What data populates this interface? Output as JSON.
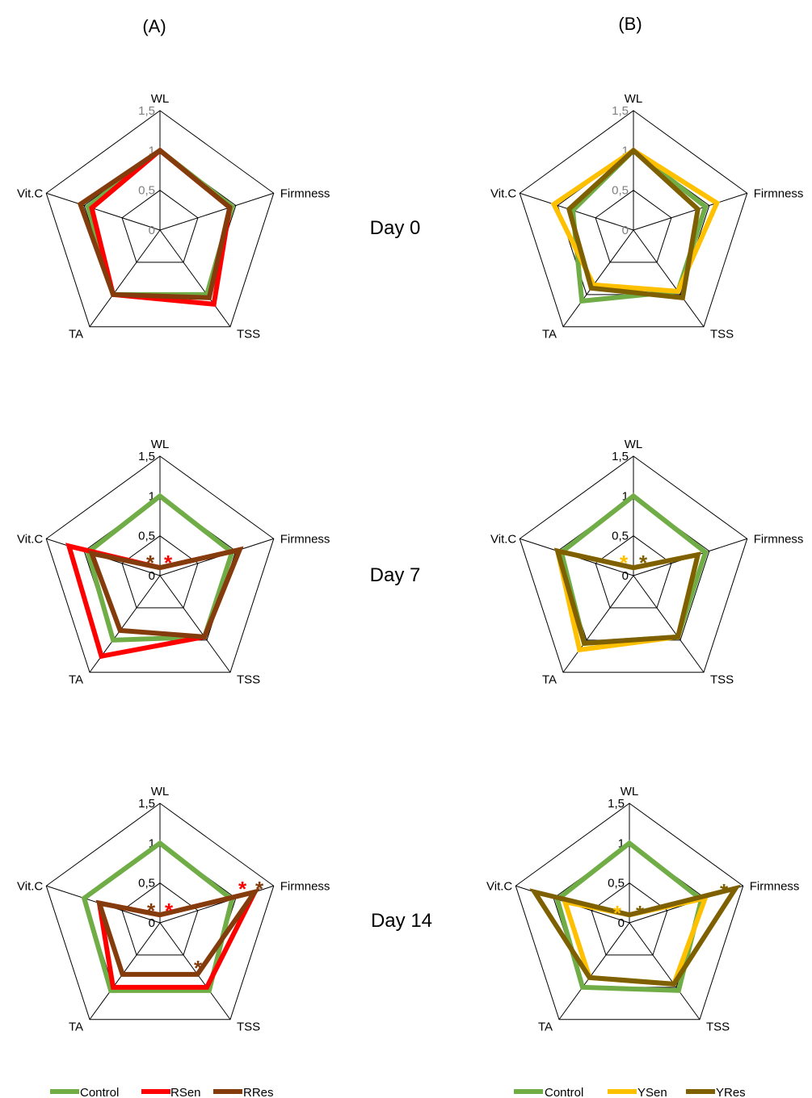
{
  "panel_labels": [
    "(A)",
    "(B)"
  ],
  "day_labels": [
    "Day 0",
    "Day 7",
    "Day 14"
  ],
  "legends": [
    [
      "Control",
      "RSen",
      "RRes"
    ],
    [
      "Control",
      "YSen",
      "YRes"
    ]
  ],
  "colors": {
    "Control": "#70ad47",
    "RSen": "#ff0000",
    "RRes": "#843c0c",
    "YSen": "#ffc000",
    "YRes": "#7f6000"
  },
  "chart_data": [
    {
      "type": "radar",
      "panel": "(A)",
      "day": "Day 0",
      "axes": [
        "WL",
        "Firmness",
        "TSS",
        "TA",
        "Vit.C"
      ],
      "ticks": [
        "0",
        "0,5",
        "1",
        "1,5"
      ],
      "rmax": 1.5,
      "series": [
        {
          "name": "Control",
          "values": [
            1.0,
            0.95,
            1.0,
            1.0,
            0.95
          ]
        },
        {
          "name": "RSen",
          "values": [
            1.0,
            0.92,
            1.15,
            1.0,
            0.9
          ]
        },
        {
          "name": "RRes",
          "values": [
            1.0,
            0.92,
            1.05,
            1.0,
            1.05
          ]
        }
      ],
      "stars": []
    },
    {
      "type": "radar",
      "panel": "(B)",
      "day": "Day 0",
      "axes": [
        "WL",
        "Firmness",
        "TSS",
        "TA",
        "Vit.C"
      ],
      "ticks": [
        "0",
        "0,5",
        "1",
        "1,5"
      ],
      "rmax": 1.5,
      "series": [
        {
          "name": "Control",
          "values": [
            1.0,
            0.95,
            0.95,
            1.1,
            0.8
          ]
        },
        {
          "name": "YSen",
          "values": [
            1.0,
            1.1,
            0.95,
            0.85,
            1.05
          ]
        },
        {
          "name": "YRes",
          "values": [
            1.0,
            0.85,
            1.05,
            0.9,
            0.85
          ]
        }
      ],
      "stars": []
    },
    {
      "type": "radar",
      "panel": "(A)",
      "day": "Day 7",
      "axes": [
        "WL",
        "Firmness",
        "TSS",
        "TA",
        "Vit.C"
      ],
      "ticks": [
        "0",
        "0,5",
        "1",
        "1,5"
      ],
      "rmax": 1.5,
      "series": [
        {
          "name": "Control",
          "values": [
            1.0,
            0.95,
            0.95,
            1.0,
            0.95
          ]
        },
        {
          "name": "RSen",
          "values": [
            0.1,
            1.05,
            0.95,
            1.25,
            1.2
          ]
        },
        {
          "name": "RRes",
          "values": [
            0.1,
            1.05,
            0.95,
            0.85,
            0.9
          ]
        }
      ],
      "stars": [
        {
          "label": "*",
          "series": "RSen"
        },
        {
          "label": "*",
          "series": "RRes"
        }
      ]
    },
    {
      "type": "radar",
      "panel": "(B)",
      "day": "Day 7",
      "axes": [
        "WL",
        "Firmness",
        "TSS",
        "TA",
        "Vit.C"
      ],
      "ticks": [
        "0",
        "0,5",
        "1",
        "1,5"
      ],
      "rmax": 1.5,
      "series": [
        {
          "name": "Control",
          "values": [
            1.0,
            0.95,
            0.95,
            1.05,
            0.95
          ]
        },
        {
          "name": "YSen",
          "values": [
            0.1,
            0.85,
            0.95,
            1.15,
            1.0
          ]
        },
        {
          "name": "YRes",
          "values": [
            0.1,
            0.85,
            0.95,
            1.05,
            1.0
          ]
        }
      ],
      "stars": [
        {
          "label": "*",
          "series": "YSen"
        },
        {
          "label": "*",
          "series": "YRes"
        }
      ]
    },
    {
      "type": "radar",
      "panel": "(A)",
      "day": "Day 14",
      "axes": [
        "WL",
        "Firmness",
        "TSS",
        "TA",
        "Vit.C"
      ],
      "ticks": [
        "0",
        "0,5",
        "1",
        "1,5"
      ],
      "rmax": 1.5,
      "series": [
        {
          "name": "Control",
          "values": [
            1.0,
            0.95,
            1.05,
            1.05,
            1.0
          ]
        },
        {
          "name": "RSen",
          "values": [
            0.1,
            1.25,
            1.0,
            1.0,
            0.8
          ]
        },
        {
          "name": "RRes",
          "values": [
            0.1,
            1.25,
            0.8,
            0.8,
            0.8
          ]
        }
      ],
      "stars": [
        {
          "label": "*",
          "series": "RSen",
          "axis": "WL"
        },
        {
          "label": "*",
          "series": "RRes",
          "axis": "WL"
        },
        {
          "label": "*",
          "series": "RSen",
          "axis": "Firmness"
        },
        {
          "label": "*",
          "series": "RRes",
          "axis": "Firmness"
        },
        {
          "label": "*",
          "series": "RRes",
          "axis": "TSS"
        }
      ]
    },
    {
      "type": "radar",
      "panel": "(B)",
      "day": "Day 14",
      "axes": [
        "WL",
        "Firmness",
        "TSS",
        "TA",
        "Vit.C"
      ],
      "ticks": [
        "0",
        "0,5",
        "1",
        "1,5"
      ],
      "rmax": 1.5,
      "series": [
        {
          "name": "Control",
          "values": [
            1.0,
            0.95,
            1.05,
            1.0,
            0.95
          ]
        },
        {
          "name": "YSen",
          "values": [
            0.1,
            1.0,
            0.95,
            0.85,
            0.85
          ]
        },
        {
          "name": "YRes",
          "values": [
            0.1,
            1.4,
            0.95,
            0.85,
            1.25
          ]
        }
      ],
      "stars": [
        {
          "label": "*",
          "series": "YSen",
          "axis": "WL"
        },
        {
          "label": "*",
          "series": "YRes",
          "axis": "WL"
        },
        {
          "label": "*",
          "series": "YRes",
          "axis": "Firmness"
        }
      ]
    }
  ]
}
